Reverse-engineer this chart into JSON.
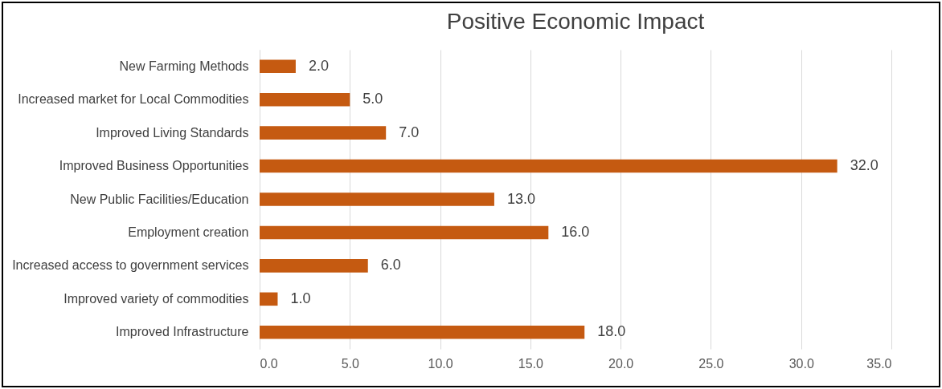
{
  "chart_data": {
    "type": "bar",
    "orientation": "horizontal",
    "title": "Positive Economic Impact",
    "categories": [
      "New Farming Methods",
      "Increased market for Local Commodities",
      "Improved Living Standards",
      "Improved Business Opportunities",
      "New Public Facilities/Education",
      "Employment creation",
      "Increased access to government services",
      "Improved variety of commodities",
      "Improved Infrastructure"
    ],
    "values": [
      2,
      5,
      7,
      32,
      13,
      16,
      6,
      1,
      18
    ],
    "value_labels": [
      "2.0",
      "5.0",
      "7.0",
      "32.0",
      "13.0",
      "16.0",
      "6.0",
      "1.0",
      "18.0"
    ],
    "color": "#c55a11",
    "xlim": [
      0,
      35
    ],
    "xticks": [
      {
        "value": 0,
        "label": "0.0"
      },
      {
        "value": 5,
        "label": "5.0"
      },
      {
        "value": 10,
        "label": "10.0"
      },
      {
        "value": 15,
        "label": "15.0"
      },
      {
        "value": 20,
        "label": "20.0"
      },
      {
        "value": 25,
        "label": "25.0"
      },
      {
        "value": 30,
        "label": "30.0"
      },
      {
        "value": 35,
        "label": "35.0"
      }
    ],
    "grid": "x"
  }
}
